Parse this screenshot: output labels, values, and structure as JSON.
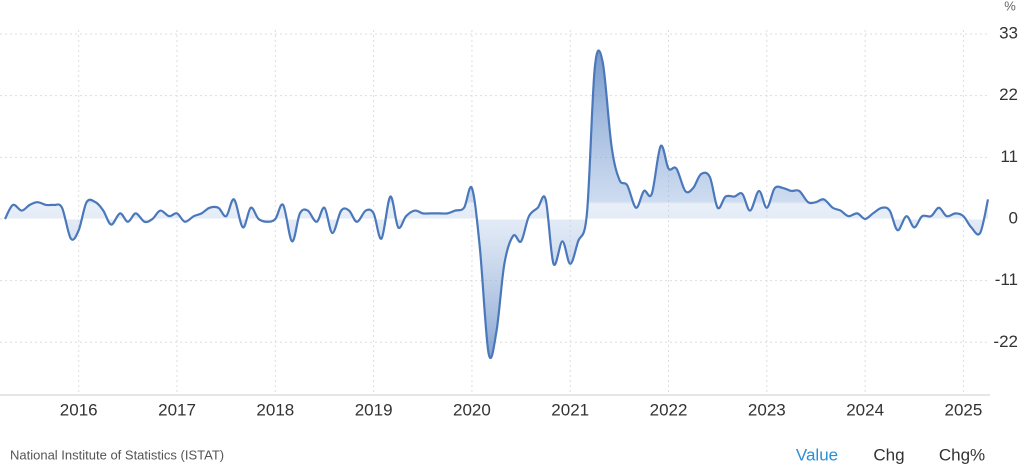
{
  "chart_data": {
    "type": "area",
    "unit": "%",
    "x": [
      2015.25,
      2015.33,
      2015.42,
      2015.5,
      2015.58,
      2015.67,
      2015.75,
      2015.83,
      2015.92,
      2016,
      2016.08,
      2016.17,
      2016.25,
      2016.33,
      2016.42,
      2016.5,
      2016.58,
      2016.67,
      2016.75,
      2016.83,
      2016.92,
      2017,
      2017.08,
      2017.17,
      2017.25,
      2017.33,
      2017.42,
      2017.5,
      2017.58,
      2017.67,
      2017.75,
      2017.83,
      2017.92,
      2018,
      2018.08,
      2018.17,
      2018.25,
      2018.33,
      2018.42,
      2018.5,
      2018.58,
      2018.67,
      2018.75,
      2018.83,
      2018.92,
      2019,
      2019.08,
      2019.17,
      2019.25,
      2019.33,
      2019.42,
      2019.5,
      2019.58,
      2019.67,
      2019.75,
      2019.83,
      2019.92,
      2020,
      2020.08,
      2020.17,
      2020.25,
      2020.33,
      2020.42,
      2020.5,
      2020.58,
      2020.67,
      2020.75,
      2020.83,
      2020.92,
      2021,
      2021.08,
      2021.17,
      2021.25,
      2021.33,
      2021.42,
      2021.5,
      2021.58,
      2021.67,
      2021.75,
      2021.83,
      2021.92,
      2022,
      2022.08,
      2022.17,
      2022.25,
      2022.33,
      2022.42,
      2022.5,
      2022.58,
      2022.67,
      2022.75,
      2022.83,
      2022.92,
      2023,
      2023.08,
      2023.17,
      2023.25,
      2023.33,
      2023.42,
      2023.5,
      2023.58,
      2023.67,
      2023.75,
      2023.83,
      2023.92,
      2024,
      2024.08,
      2024.17,
      2024.25,
      2024.33,
      2024.42,
      2024.5,
      2024.58,
      2024.67,
      2024.75,
      2024.83,
      2024.92,
      2025,
      2025.08,
      2025.17,
      2025.25
    ],
    "values": [
      0,
      2.5,
      1.5,
      2.5,
      3,
      2.5,
      2.5,
      2,
      -3.5,
      -2,
      3,
      3,
      1.5,
      -1,
      1,
      -0.5,
      1,
      -0.5,
      0,
      1.5,
      0.5,
      1,
      -0.5,
      0.5,
      1,
      2,
      2,
      0.5,
      3.5,
      -1.5,
      2,
      0,
      -0.5,
      0,
      2.5,
      -4,
      1,
      1.5,
      -0.5,
      2,
      -2.5,
      1.5,
      1.5,
      -0.5,
      1.5,
      1,
      -3.5,
      4,
      -1.5,
      0.5,
      1.5,
      1,
      1,
      1,
      1,
      1.5,
      2,
      5.5,
      -5,
      -24,
      -20,
      -8,
      -3,
      -4,
      0.5,
      2,
      3.5,
      -8,
      -4,
      -8,
      -4,
      1,
      27,
      28,
      13,
      7,
      6,
      2,
      5,
      4.5,
      13,
      9,
      9,
      5,
      5.5,
      8,
      7.5,
      2,
      4,
      4,
      4.5,
      1.5,
      5,
      2,
      5.5,
      5.5,
      5,
      5,
      3,
      3,
      3.5,
      2,
      1.5,
      0.5,
      1,
      0,
      1,
      2,
      1.5,
      -2,
      0.5,
      -1.5,
      0.5,
      0.5,
      2,
      0.5,
      1,
      0.5,
      -1.5,
      -2.5,
      3.5
    ],
    "color": "#4a78bb",
    "xlim": [
      2015.25,
      2025.25
    ],
    "xticks": [
      2016,
      2017,
      2018,
      2019,
      2020,
      2021,
      2022,
      2023,
      2024,
      2025
    ],
    "ylim": [
      -31.4,
      33
    ],
    "yticks": [
      33,
      22,
      11,
      0,
      -11,
      -22
    ],
    "grid": true
  },
  "footer": {
    "source": "National Institute of Statistics (ISTAT)",
    "buttons": [
      "Value",
      "Chg",
      "Chg%"
    ]
  }
}
